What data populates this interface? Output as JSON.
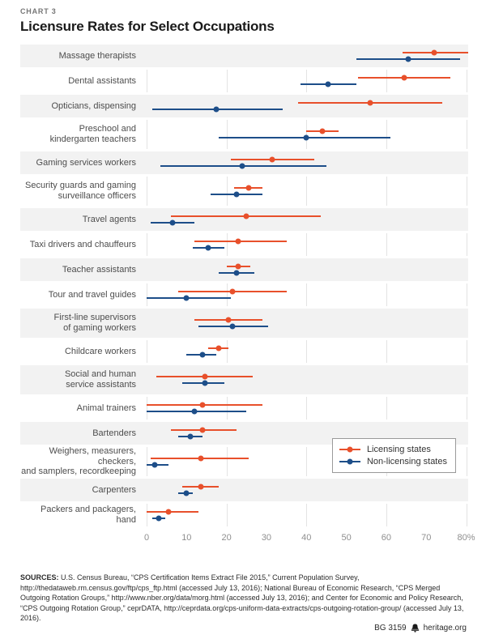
{
  "header": {
    "kicker": "CHART 3",
    "title": "Licensure Rates for Select Occupations"
  },
  "colors": {
    "licensing": "#e8502b",
    "non_licensing": "#1d4e89",
    "band": "#f2f2f2",
    "gridline": "#e3e3e3"
  },
  "legend": {
    "items": [
      {
        "label": "Licensing states",
        "color": "#e8502b"
      },
      {
        "label": "Non-licensing states",
        "color": "#1d4e89"
      }
    ]
  },
  "chart_data": {
    "type": "scatter",
    "title": "Licensure Rates for Select Occupations",
    "xlabel": "",
    "ylabel": "",
    "xlim": [
      0,
      80.5
    ],
    "x_ticks": [
      0,
      10,
      20,
      30,
      40,
      50,
      60,
      70,
      80
    ],
    "x_tick_labels": [
      "0",
      "10",
      "20",
      "30",
      "40",
      "50",
      "60",
      "70",
      "80%"
    ],
    "gridlines_at": [
      0,
      20,
      40,
      60,
      80
    ],
    "legend_position": "lower right",
    "series_names": [
      "Licensing states",
      "Non-licensing states"
    ],
    "rows": [
      {
        "label_lines": [
          "Massage therapists"
        ],
        "licensing": {
          "value": 72,
          "lo": 64,
          "hi": 81.5
        },
        "non_licensing": {
          "value": 65.5,
          "lo": 52.5,
          "hi": 78.5
        }
      },
      {
        "label_lines": [
          "Dental assistants"
        ],
        "licensing": {
          "value": 64.5,
          "lo": 53,
          "hi": 76
        },
        "non_licensing": {
          "value": 45.5,
          "lo": 38.5,
          "hi": 52.5
        }
      },
      {
        "label_lines": [
          "Opticians, dispensing"
        ],
        "licensing": {
          "value": 56,
          "lo": 38,
          "hi": 74
        },
        "non_licensing": {
          "value": 17.5,
          "lo": 1.5,
          "hi": 34
        }
      },
      {
        "label_lines": [
          "Preschool and",
          "kindergarten teachers"
        ],
        "licensing": {
          "value": 44,
          "lo": 40,
          "hi": 48
        },
        "non_licensing": {
          "value": 40,
          "lo": 18,
          "hi": 61
        }
      },
      {
        "label_lines": [
          "Gaming services workers"
        ],
        "licensing": {
          "value": 31.5,
          "lo": 21,
          "hi": 42
        },
        "non_licensing": {
          "value": 24,
          "lo": 3.5,
          "hi": 45
        }
      },
      {
        "label_lines": [
          "Security guards and gaming",
          "surveillance officers"
        ],
        "licensing": {
          "value": 25.5,
          "lo": 22,
          "hi": 29
        },
        "non_licensing": {
          "value": 22.5,
          "lo": 16,
          "hi": 29
        }
      },
      {
        "label_lines": [
          "Travel agents"
        ],
        "licensing": {
          "value": 25,
          "lo": 6,
          "hi": 43.5
        },
        "non_licensing": {
          "value": 6.5,
          "lo": 1,
          "hi": 12
        }
      },
      {
        "label_lines": [
          "Taxi drivers and chauffeurs"
        ],
        "licensing": {
          "value": 23,
          "lo": 12,
          "hi": 35
        },
        "non_licensing": {
          "value": 15.5,
          "lo": 11.5,
          "hi": 19.5
        }
      },
      {
        "label_lines": [
          "Teacher assistants"
        ],
        "licensing": {
          "value": 23,
          "lo": 20,
          "hi": 26
        },
        "non_licensing": {
          "value": 22.5,
          "lo": 18,
          "hi": 27
        }
      },
      {
        "label_lines": [
          "Tour and travel guides"
        ],
        "licensing": {
          "value": 21.5,
          "lo": 8,
          "hi": 35
        },
        "non_licensing": {
          "value": 10,
          "lo": 0,
          "hi": 21
        }
      },
      {
        "label_lines": [
          "First-line supervisors",
          "of gaming workers"
        ],
        "licensing": {
          "value": 20.5,
          "lo": 12,
          "hi": 29
        },
        "non_licensing": {
          "value": 21.5,
          "lo": 13,
          "hi": 30.5
        }
      },
      {
        "label_lines": [
          "Childcare workers"
        ],
        "licensing": {
          "value": 18,
          "lo": 15.5,
          "hi": 20.5
        },
        "non_licensing": {
          "value": 14,
          "lo": 10,
          "hi": 17.5
        }
      },
      {
        "label_lines": [
          "Social and human",
          "service assistants"
        ],
        "licensing": {
          "value": 14.5,
          "lo": 2.5,
          "hi": 26.5
        },
        "non_licensing": {
          "value": 14.5,
          "lo": 9,
          "hi": 19.5
        }
      },
      {
        "label_lines": [
          "Animal trainers"
        ],
        "licensing": {
          "value": 14,
          "lo": 0,
          "hi": 29
        },
        "non_licensing": {
          "value": 12,
          "lo": 0,
          "hi": 25
        }
      },
      {
        "label_lines": [
          "Bartenders"
        ],
        "licensing": {
          "value": 14,
          "lo": 6,
          "hi": 22.5
        },
        "non_licensing": {
          "value": 11,
          "lo": 8,
          "hi": 14
        }
      },
      {
        "label_lines": [
          "Weighers, measurers, checkers,",
          "and samplers, recordkeeping"
        ],
        "licensing": {
          "value": 13.5,
          "lo": 1,
          "hi": 25.5
        },
        "non_licensing": {
          "value": 2,
          "lo": 0,
          "hi": 5.5
        }
      },
      {
        "label_lines": [
          "Carpenters"
        ],
        "licensing": {
          "value": 13.5,
          "lo": 9,
          "hi": 18
        },
        "non_licensing": {
          "value": 10,
          "lo": 8,
          "hi": 11.5
        }
      },
      {
        "label_lines": [
          "Packers and packagers, hand"
        ],
        "licensing": {
          "value": 5.5,
          "lo": 0,
          "hi": 13
        },
        "non_licensing": {
          "value": 3,
          "lo": 1.5,
          "hi": 4.7
        }
      }
    ]
  },
  "sources": {
    "label": "SOURCES:",
    "text": " U.S. Census Bureau, “CPS Certification Items Extract File 2015,” Current Population Survey, http://thedataweb.rm.census.gov/ftp/cps_ftp.html (accessed July 13, 2016); National Bureau of Economic Research, “CPS Merged Outgoing Rotation Groups,” http://www.nber.org/data/morg.html (accessed July 13, 2016); and Center for Economic and Policy Research, “CPS Outgoing Rotation Group,” ceprDATA, http://ceprdata.org/cps-uniform-data-extracts/cps-outgoing-rotation-group/ (accessed July 13, 2016)."
  },
  "footer": {
    "doc_id": "BG 3159",
    "site": "heritage.org"
  }
}
